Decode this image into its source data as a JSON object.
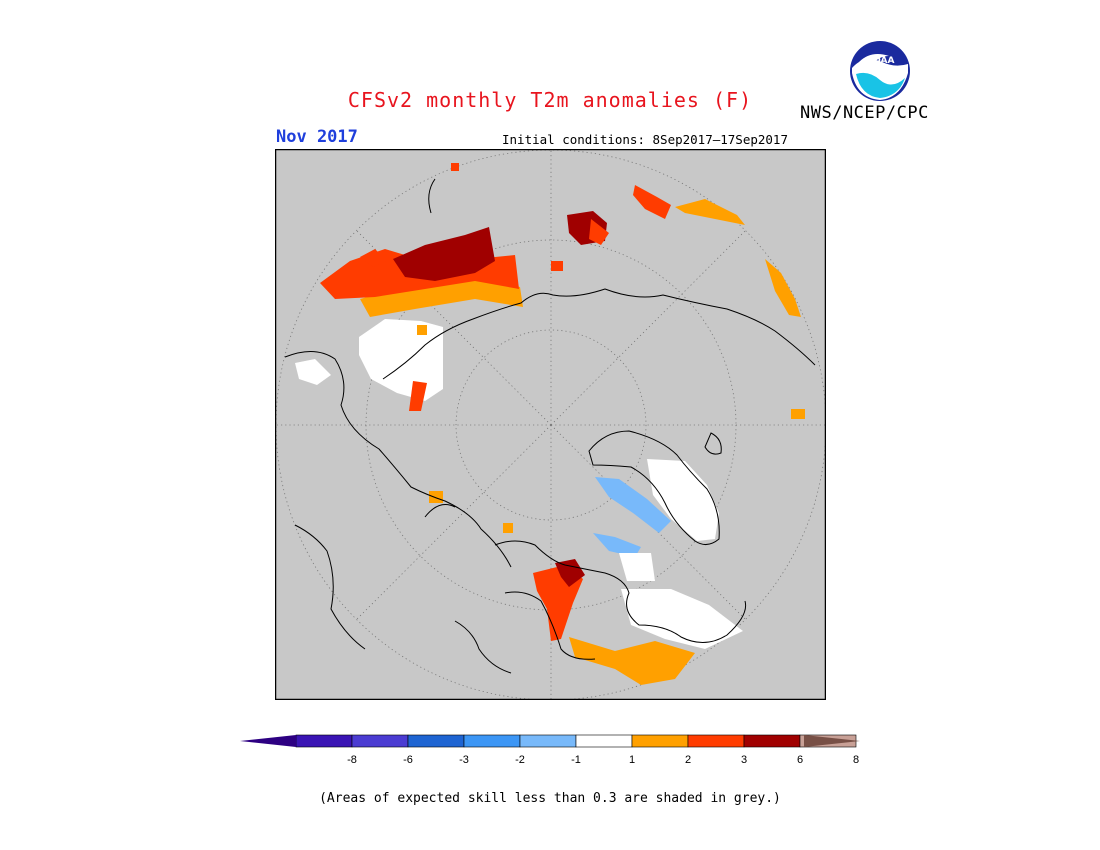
{
  "header": {
    "title": "CFSv2 monthly T2m anomalies (F)",
    "agency": "NWS/NCEP/CPC",
    "logo_text": "NOAA",
    "month": "Nov 2017",
    "initial_conditions": "Initial conditions: 8Sep2017–17Sep2017"
  },
  "map": {
    "projection": "north-polar-stereographic",
    "background_color": "#c8c8c8",
    "graticule": "dotted"
  },
  "legend": {
    "bins": [
      {
        "label": "-8",
        "color": "#3a14b4"
      },
      {
        "label": "-6",
        "color": "#4b3cd2"
      },
      {
        "label": "-3",
        "color": "#1e64d2"
      },
      {
        "label": "-2",
        "color": "#3c96f5"
      },
      {
        "label": "-1",
        "color": "#78b9fa"
      },
      {
        "label": "1",
        "color": "#ffffff"
      },
      {
        "label": "2",
        "color": "#ffa000"
      },
      {
        "label": "3",
        "color": "#ff3c00"
      },
      {
        "label": "6",
        "color": "#a00000"
      },
      {
        "label": "8",
        "color": "#c8a096"
      }
    ],
    "below_color": "#2d0082",
    "above_color": "#785046"
  },
  "footnote": "(Areas of expected skill less than 0.3 are shaded in grey.)"
}
